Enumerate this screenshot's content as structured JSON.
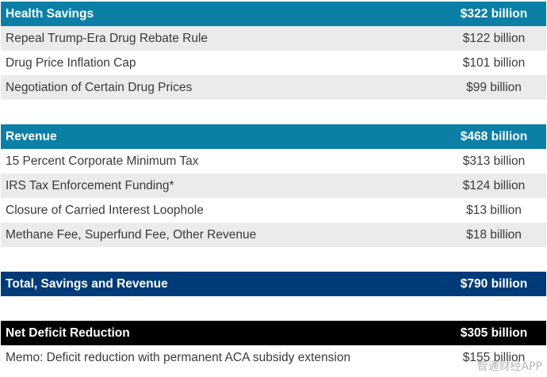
{
  "sections": [
    {
      "header": {
        "label": "Health Savings",
        "value": "$322 billion"
      },
      "color": "#0b7fa6",
      "rows": [
        {
          "label": "Repeal Trump-Era Drug Rebate Rule",
          "value": "$122 billion"
        },
        {
          "label": "Drug Price Inflation Cap",
          "value": "$101 billion"
        },
        {
          "label": "Negotiation of Certain Drug Prices",
          "value": "$99 billion"
        }
      ]
    },
    {
      "header": {
        "label": "Revenue",
        "value": "$468 billion"
      },
      "color": "#0b7fa6",
      "rows": [
        {
          "label": "15 Percent Corporate Minimum Tax",
          "value": "$313 billion"
        },
        {
          "label": "IRS Tax Enforcement Funding*",
          "value": "$124 billion"
        },
        {
          "label": "Closure of Carried Interest Loophole",
          "value": "$13 billion"
        },
        {
          "label": "Methane Fee, Superfund Fee, Other Revenue",
          "value": "$18 billion"
        }
      ]
    },
    {
      "header": {
        "label": "Total, Savings and Revenue",
        "value": "$790 billion"
      },
      "color": "#003b79",
      "rows": []
    },
    {
      "header": {
        "label": "Net Deficit Reduction",
        "value": "$305 billion"
      },
      "color": "#000000",
      "rows": [
        {
          "label": "Memo: Deficit reduction with permanent ACA subsidy extension",
          "value": "$155 billion"
        }
      ]
    }
  ],
  "watermark": "智通财经APP"
}
